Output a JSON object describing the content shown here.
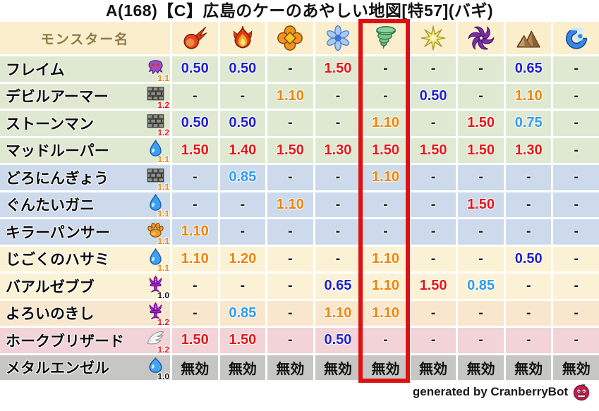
{
  "title": "A(168)【C】広島のケーのあやしい地図[特57](バギ)",
  "footer": {
    "credit": "generated by CranberryBot",
    "bot_icon": "cranberry-bot-icon"
  },
  "highlight": {
    "column_index": 4,
    "note": "red box around tornado (bagi) column"
  },
  "colors": {
    "page-bg": "#ffffff",
    "header-bg": "#faeecd",
    "header-text": "#8c7a45",
    "row-green": "#dfe9d2",
    "row-blue": "#ccdaeb",
    "row-cream": "#fbf2d5",
    "row-tan": "#f8e6cd",
    "row-pink": "#f2d3d8",
    "row-gray": "#c6c6c4",
    "val-red": "#e81515",
    "val-orange": "#f08300",
    "val-blue": "#1f1fd0",
    "val-lightblue": "#2e9bf0",
    "val-dash": "#222222",
    "val-black": "#111111",
    "highlight-red": "#dd1111"
  },
  "table": {
    "name_header": "モンスター名",
    "element_columns": [
      {
        "id": "fire",
        "icon": "fireball-icon"
      },
      {
        "id": "flame",
        "icon": "flame-icon"
      },
      {
        "id": "explosion",
        "icon": "explosion-icon"
      },
      {
        "id": "ice",
        "icon": "snowflake-icon"
      },
      {
        "id": "wind",
        "icon": "tornado-icon",
        "highlighted": true
      },
      {
        "id": "light",
        "icon": "spark-icon"
      },
      {
        "id": "dark",
        "icon": "pinwheel-icon"
      },
      {
        "id": "earth",
        "icon": "mountain-icon"
      },
      {
        "id": "wave",
        "icon": "wave-icon"
      }
    ],
    "rows": [
      {
        "name": "フレイム",
        "monster_icon": "ghost-icon",
        "weight": "1.1",
        "weight_color": "orange",
        "band": "green",
        "cells": [
          {
            "v": "0.50",
            "c": "blue"
          },
          {
            "v": "0.50",
            "c": "blue"
          },
          {
            "v": "-",
            "c": "dash"
          },
          {
            "v": "1.50",
            "c": "red"
          },
          {
            "v": "-",
            "c": "dash"
          },
          {
            "v": "-",
            "c": "dash"
          },
          {
            "v": "-",
            "c": "dash"
          },
          {
            "v": "0.65",
            "c": "blue"
          },
          {
            "v": "-",
            "c": "dash"
          }
        ]
      },
      {
        "name": "デビルアーマー",
        "monster_icon": "brick-icon",
        "weight": "1.2",
        "weight_color": "red",
        "band": "green",
        "cells": [
          {
            "v": "-",
            "c": "dash"
          },
          {
            "v": "-",
            "c": "dash"
          },
          {
            "v": "1.10",
            "c": "orange"
          },
          {
            "v": "-",
            "c": "dash"
          },
          {
            "v": "-",
            "c": "dash"
          },
          {
            "v": "0.50",
            "c": "blue"
          },
          {
            "v": "-",
            "c": "dash"
          },
          {
            "v": "1.10",
            "c": "orange"
          },
          {
            "v": "-",
            "c": "dash"
          }
        ]
      },
      {
        "name": "ストーンマン",
        "monster_icon": "brick-icon",
        "weight": "1.2",
        "weight_color": "red",
        "band": "green",
        "cells": [
          {
            "v": "0.50",
            "c": "blue"
          },
          {
            "v": "0.50",
            "c": "blue"
          },
          {
            "v": "-",
            "c": "dash"
          },
          {
            "v": "-",
            "c": "dash"
          },
          {
            "v": "1.10",
            "c": "orange"
          },
          {
            "v": "-",
            "c": "dash"
          },
          {
            "v": "1.50",
            "c": "red"
          },
          {
            "v": "0.75",
            "c": "lightblue"
          },
          {
            "v": "-",
            "c": "dash"
          }
        ]
      },
      {
        "name": "マッドルーパー",
        "monster_icon": "drop-icon",
        "weight": "1.1",
        "weight_color": "orange",
        "band": "green",
        "cells": [
          {
            "v": "1.50",
            "c": "red"
          },
          {
            "v": "1.40",
            "c": "red"
          },
          {
            "v": "1.50",
            "c": "red"
          },
          {
            "v": "1.30",
            "c": "red"
          },
          {
            "v": "1.50",
            "c": "red"
          },
          {
            "v": "1.50",
            "c": "red"
          },
          {
            "v": "1.50",
            "c": "red"
          },
          {
            "v": "1.30",
            "c": "red"
          },
          {
            "v": "-",
            "c": "dash"
          }
        ]
      },
      {
        "name": "どろにんぎょう",
        "monster_icon": "brick-icon",
        "weight": "1.1",
        "weight_color": "orange",
        "band": "blue",
        "cells": [
          {
            "v": "-",
            "c": "dash"
          },
          {
            "v": "0.85",
            "c": "lightblue"
          },
          {
            "v": "-",
            "c": "dash"
          },
          {
            "v": "-",
            "c": "dash"
          },
          {
            "v": "1.10",
            "c": "orange"
          },
          {
            "v": "-",
            "c": "dash"
          },
          {
            "v": "-",
            "c": "dash"
          },
          {
            "v": "-",
            "c": "dash"
          },
          {
            "v": "-",
            "c": "dash"
          }
        ]
      },
      {
        "name": "ぐんたいガニ",
        "monster_icon": "drop-icon",
        "weight": "1.1",
        "weight_color": "orange",
        "band": "blue",
        "cells": [
          {
            "v": "-",
            "c": "dash"
          },
          {
            "v": "-",
            "c": "dash"
          },
          {
            "v": "1.10",
            "c": "orange"
          },
          {
            "v": "-",
            "c": "dash"
          },
          {
            "v": "-",
            "c": "dash"
          },
          {
            "v": "-",
            "c": "dash"
          },
          {
            "v": "1.50",
            "c": "red"
          },
          {
            "v": "-",
            "c": "dash"
          },
          {
            "v": "-",
            "c": "dash"
          }
        ]
      },
      {
        "name": "キラーパンサー",
        "monster_icon": "paw-icon",
        "weight": "1.1",
        "weight_color": "orange",
        "band": "blue",
        "cells": [
          {
            "v": "1.10",
            "c": "orange"
          },
          {
            "v": "-",
            "c": "dash"
          },
          {
            "v": "-",
            "c": "dash"
          },
          {
            "v": "-",
            "c": "dash"
          },
          {
            "v": "-",
            "c": "dash"
          },
          {
            "v": "-",
            "c": "dash"
          },
          {
            "v": "-",
            "c": "dash"
          },
          {
            "v": "-",
            "c": "dash"
          },
          {
            "v": "-",
            "c": "dash"
          }
        ]
      },
      {
        "name": "じごくのハサミ",
        "monster_icon": "drop-icon",
        "weight": "1.1",
        "weight_color": "orange",
        "band": "cream",
        "cells": [
          {
            "v": "1.10",
            "c": "orange"
          },
          {
            "v": "1.20",
            "c": "orange"
          },
          {
            "v": "-",
            "c": "dash"
          },
          {
            "v": "-",
            "c": "dash"
          },
          {
            "v": "1.10",
            "c": "orange"
          },
          {
            "v": "-",
            "c": "dash"
          },
          {
            "v": "-",
            "c": "dash"
          },
          {
            "v": "0.50",
            "c": "blue"
          },
          {
            "v": "-",
            "c": "dash"
          }
        ]
      },
      {
        "name": "バアルゼブブ",
        "monster_icon": "trident-icon",
        "weight": "1.0",
        "weight_color": "black",
        "band": "cream",
        "cells": [
          {
            "v": "-",
            "c": "dash"
          },
          {
            "v": "-",
            "c": "dash"
          },
          {
            "v": "-",
            "c": "dash"
          },
          {
            "v": "0.65",
            "c": "blue"
          },
          {
            "v": "1.10",
            "c": "orange"
          },
          {
            "v": "1.50",
            "c": "red"
          },
          {
            "v": "0.85",
            "c": "lightblue"
          },
          {
            "v": "-",
            "c": "dash"
          },
          {
            "v": "-",
            "c": "dash"
          }
        ]
      },
      {
        "name": "よろいのきし",
        "monster_icon": "trident-icon",
        "weight": "1.2",
        "weight_color": "red",
        "band": "tan",
        "cells": [
          {
            "v": "-",
            "c": "dash"
          },
          {
            "v": "0.85",
            "c": "lightblue"
          },
          {
            "v": "-",
            "c": "dash"
          },
          {
            "v": "1.10",
            "c": "orange"
          },
          {
            "v": "1.10",
            "c": "orange"
          },
          {
            "v": "-",
            "c": "dash"
          },
          {
            "v": "-",
            "c": "dash"
          },
          {
            "v": "-",
            "c": "dash"
          },
          {
            "v": "-",
            "c": "dash"
          }
        ]
      },
      {
        "name": "ホークブリザード",
        "monster_icon": "wing-icon",
        "weight": "1.2",
        "weight_color": "red",
        "band": "pink",
        "cells": [
          {
            "v": "1.50",
            "c": "red"
          },
          {
            "v": "1.50",
            "c": "red"
          },
          {
            "v": "-",
            "c": "dash"
          },
          {
            "v": "0.50",
            "c": "blue"
          },
          {
            "v": "-",
            "c": "dash"
          },
          {
            "v": "-",
            "c": "dash"
          },
          {
            "v": "-",
            "c": "dash"
          },
          {
            "v": "-",
            "c": "dash"
          },
          {
            "v": "-",
            "c": "dash"
          }
        ]
      },
      {
        "name": "メタルエンゼル",
        "monster_icon": "slime-icon",
        "weight": "1.0",
        "weight_color": "black",
        "band": "gray",
        "cells": [
          {
            "v": "無効",
            "c": "black"
          },
          {
            "v": "無効",
            "c": "black"
          },
          {
            "v": "無効",
            "c": "black"
          },
          {
            "v": "無効",
            "c": "black"
          },
          {
            "v": "無効",
            "c": "black"
          },
          {
            "v": "無効",
            "c": "black"
          },
          {
            "v": "無効",
            "c": "black"
          },
          {
            "v": "無効",
            "c": "black"
          },
          {
            "v": "無効",
            "c": "black"
          }
        ]
      }
    ]
  },
  "chart_data": {
    "type": "table",
    "title": "A(168)【C】広島のケーのあやしい地図[特57](バギ)",
    "columns": [
      "モンスター名",
      "fireball",
      "flame",
      "explosion",
      "snowflake",
      "tornado",
      "spark",
      "pinwheel",
      "mountain",
      "wave"
    ],
    "highlighted_column": "tornado",
    "rows": [
      [
        "フレイム (1.1)",
        "0.50",
        "0.50",
        "-",
        "1.50",
        "-",
        "-",
        "-",
        "0.65",
        "-"
      ],
      [
        "デビルアーマー (1.2)",
        "-",
        "-",
        "1.10",
        "-",
        "-",
        "0.50",
        "-",
        "1.10",
        "-"
      ],
      [
        "ストーンマン (1.2)",
        "0.50",
        "0.50",
        "-",
        "-",
        "1.10",
        "-",
        "1.50",
        "0.75",
        "-"
      ],
      [
        "マッドルーパー (1.1)",
        "1.50",
        "1.40",
        "1.50",
        "1.30",
        "1.50",
        "1.50",
        "1.50",
        "1.30",
        "-"
      ],
      [
        "どろにんぎょう (1.1)",
        "-",
        "0.85",
        "-",
        "-",
        "1.10",
        "-",
        "-",
        "-",
        "-"
      ],
      [
        "ぐんたいガニ (1.1)",
        "-",
        "-",
        "1.10",
        "-",
        "-",
        "-",
        "1.50",
        "-",
        "-"
      ],
      [
        "キラーパンサー (1.1)",
        "1.10",
        "-",
        "-",
        "-",
        "-",
        "-",
        "-",
        "-",
        "-"
      ],
      [
        "じごくのハサミ (1.1)",
        "1.10",
        "1.20",
        "-",
        "-",
        "1.10",
        "-",
        "-",
        "0.50",
        "-"
      ],
      [
        "バアルゼブブ (1.0)",
        "-",
        "-",
        "-",
        "0.65",
        "1.10",
        "1.50",
        "0.85",
        "-",
        "-"
      ],
      [
        "よろいのきし (1.2)",
        "-",
        "0.85",
        "-",
        "1.10",
        "1.10",
        "-",
        "-",
        "-",
        "-"
      ],
      [
        "ホークブリザード (1.2)",
        "1.50",
        "1.50",
        "-",
        "0.50",
        "-",
        "-",
        "-",
        "-",
        "-"
      ],
      [
        "メタルエンゼル (1.0)",
        "無効",
        "無効",
        "無効",
        "無効",
        "無効",
        "無効",
        "無効",
        "無効",
        "無効"
      ]
    ]
  }
}
